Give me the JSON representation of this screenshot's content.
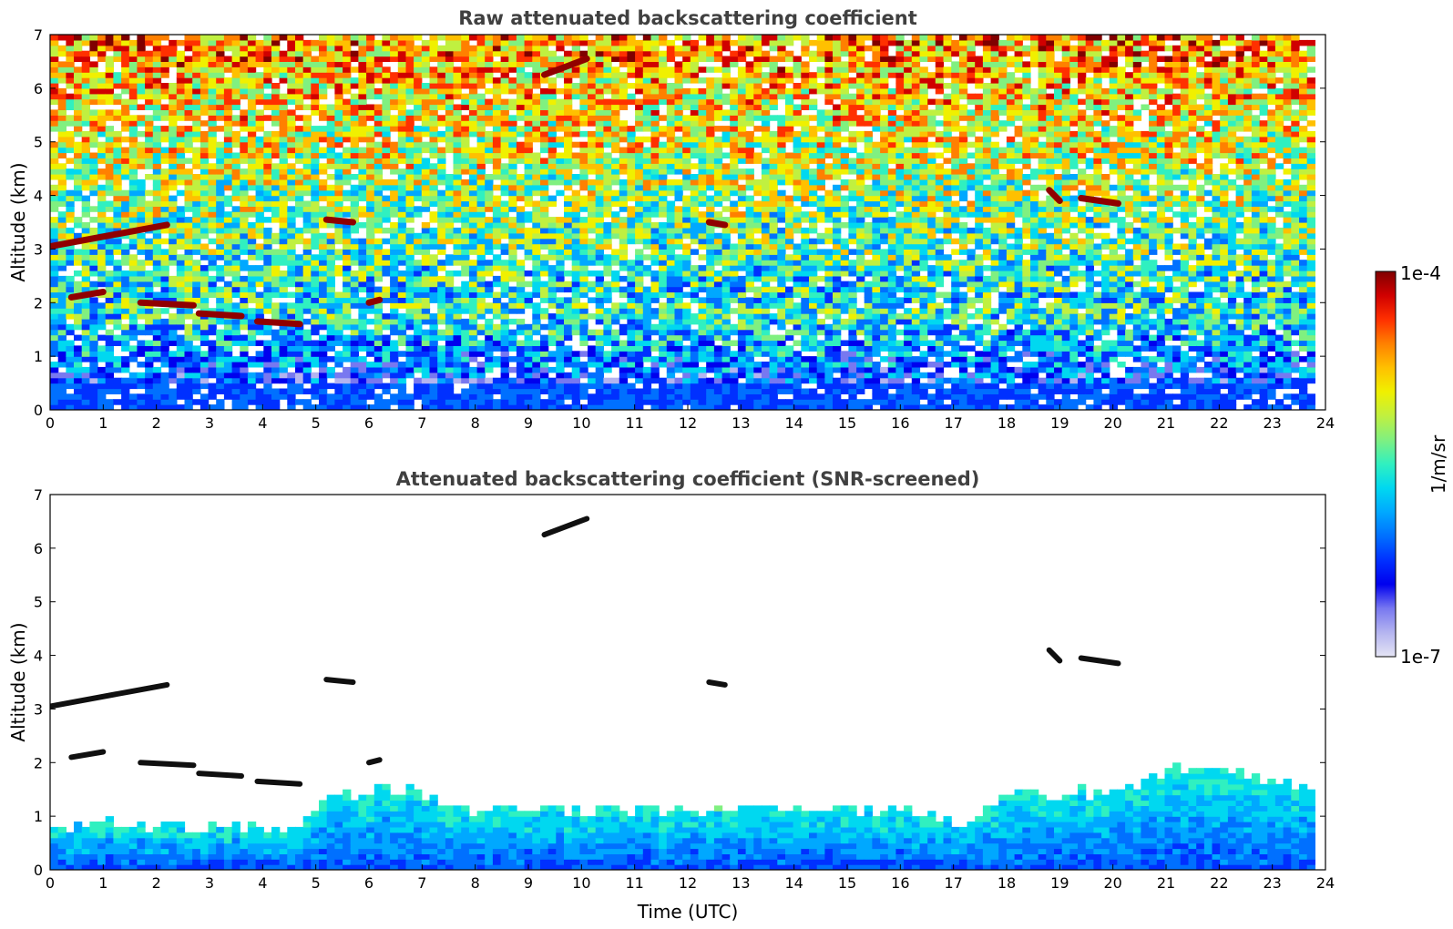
{
  "chart_data": [
    {
      "type": "heatmap",
      "title": "Raw attenuated backscattering coefficient",
      "xlabel": "",
      "ylabel": "Altitude (km)",
      "xlim": [
        0,
        24
      ],
      "ylim": [
        0,
        7
      ],
      "xticks": [
        "0",
        "1",
        "2",
        "3",
        "4",
        "5",
        "6",
        "7",
        "8",
        "9",
        "10",
        "11",
        "12",
        "13",
        "14",
        "15",
        "16",
        "17",
        "18",
        "19",
        "20",
        "21",
        "22",
        "23",
        "24"
      ],
      "yticks": [
        "0",
        "1",
        "2",
        "3",
        "4",
        "5",
        "6",
        "7"
      ],
      "color_scale": "log",
      "data_time_end": 23.8,
      "cloud_layers": [
        {
          "t_start": 0.0,
          "t_end": 2.2,
          "alt_start": 3.05,
          "alt_end": 3.45
        },
        {
          "t_start": 0.4,
          "t_end": 1.0,
          "alt_start": 2.1,
          "alt_end": 2.2
        },
        {
          "t_start": 1.7,
          "t_end": 2.7,
          "alt_start": 2.0,
          "alt_end": 1.95
        },
        {
          "t_start": 2.8,
          "t_end": 3.6,
          "alt_start": 1.8,
          "alt_end": 1.75
        },
        {
          "t_start": 3.9,
          "t_end": 4.7,
          "alt_start": 1.65,
          "alt_end": 1.6
        },
        {
          "t_start": 5.2,
          "t_end": 5.7,
          "alt_start": 3.55,
          "alt_end": 3.5
        },
        {
          "t_start": 6.0,
          "t_end": 6.2,
          "alt_start": 2.0,
          "alt_end": 2.05
        },
        {
          "t_start": 9.3,
          "t_end": 10.1,
          "alt_start": 6.25,
          "alt_end": 6.55
        },
        {
          "t_start": 12.4,
          "t_end": 12.7,
          "alt_start": 3.5,
          "alt_end": 3.45
        },
        {
          "t_start": 19.4,
          "t_end": 20.1,
          "alt_start": 3.95,
          "alt_end": 3.85
        },
        {
          "t_start": 18.8,
          "t_end": 19.0,
          "alt_start": 4.1,
          "alt_end": 3.9
        }
      ]
    },
    {
      "type": "heatmap",
      "title": "Attenuated backscattering coefficient (SNR-screened)",
      "xlabel": "Time (UTC)",
      "ylabel": "Altitude (km)",
      "xlim": [
        0,
        24
      ],
      "ylim": [
        0,
        7
      ],
      "xticks": [
        "0",
        "1",
        "2",
        "3",
        "4",
        "5",
        "6",
        "7",
        "8",
        "9",
        "10",
        "11",
        "12",
        "13",
        "14",
        "15",
        "16",
        "17",
        "18",
        "19",
        "20",
        "21",
        "22",
        "23",
        "24"
      ],
      "yticks": [
        "0",
        "1",
        "2",
        "3",
        "4",
        "5",
        "6",
        "7"
      ],
      "color_scale": "log",
      "data_time_end": 23.8,
      "boundary_layer_top_km": [
        {
          "t": 0.0,
          "alt": 0.8
        },
        {
          "t": 4.5,
          "alt": 0.75
        },
        {
          "t": 5.0,
          "alt": 1.3
        },
        {
          "t": 6.5,
          "alt": 1.5
        },
        {
          "t": 8.0,
          "alt": 1.05
        },
        {
          "t": 12.0,
          "alt": 1.05
        },
        {
          "t": 16.0,
          "alt": 1.1
        },
        {
          "t": 17.1,
          "alt": 0.85
        },
        {
          "t": 18.0,
          "alt": 1.35
        },
        {
          "t": 20.0,
          "alt": 1.4
        },
        {
          "t": 21.0,
          "alt": 1.8
        },
        {
          "t": 22.0,
          "alt": 1.8
        },
        {
          "t": 23.8,
          "alt": 1.4
        }
      ]
    }
  ],
  "colorbar": {
    "label": "1/m/sr",
    "max_label": "1e-4",
    "min_label": "1e-7",
    "colors": [
      "#e4e4f4",
      "#b4b4f0",
      "#7878f0",
      "#0000ee",
      "#0030ff",
      "#0070ff",
      "#00a8ff",
      "#00d8f0",
      "#30f0c0",
      "#80f080",
      "#c0f040",
      "#f0f000",
      "#ffc000",
      "#ff8000",
      "#ff3000",
      "#d00000",
      "#800000"
    ]
  }
}
